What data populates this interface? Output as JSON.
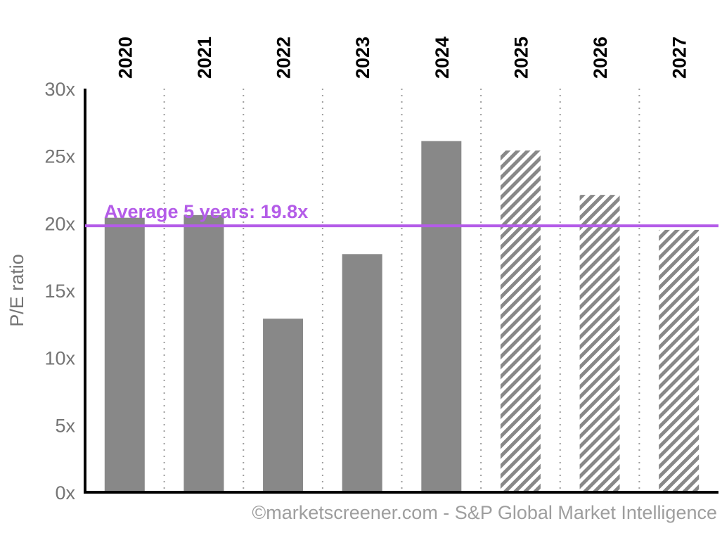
{
  "chart_data": {
    "type": "bar",
    "categories": [
      "2020",
      "2021",
      "2022",
      "2023",
      "2024",
      "2025",
      "2026",
      "2027"
    ],
    "values": [
      20.4,
      20.6,
      12.9,
      17.7,
      26.1,
      25.4,
      22.1,
      19.5
    ],
    "estimated": [
      false,
      false,
      false,
      false,
      false,
      true,
      true,
      true
    ],
    "xlabel": "",
    "ylabel": "P/E ratio",
    "ylim": [
      0,
      30
    ],
    "yticks": [
      0,
      5,
      10,
      15,
      20,
      25,
      30
    ],
    "ytick_labels": [
      "0x",
      "5x",
      "10x",
      "15x",
      "20x",
      "25x",
      "30x"
    ],
    "average": {
      "value": 19.8,
      "label": "Average 5 years: 19.8x",
      "color": "#b45ce8"
    },
    "grid": "vertical dotted",
    "colors": {
      "bar": "#888888",
      "axis": "#000000"
    }
  },
  "credit": "©marketscreener.com - S&P Global Market Intelligence"
}
